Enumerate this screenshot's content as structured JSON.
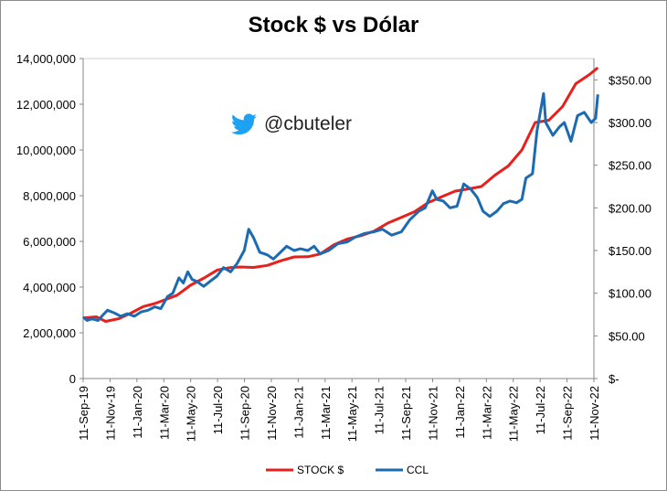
{
  "colors": {
    "stock": "#e8201c",
    "ccl": "#1c6bb2",
    "twitter": "#1da1f2"
  },
  "watermark": {
    "handle": "@cbuteler",
    "icon": "twitter-bird-icon"
  },
  "chart_data": {
    "type": "line",
    "title": "Stock $ vs Dólar",
    "x_ticks": [
      "11-Sep-19",
      "11-Nov-19",
      "11-Jan-20",
      "11-Mar-20",
      "11-May-20",
      "11-Jul-20",
      "11-Sep-20",
      "11-Nov-20",
      "11-Jan-21",
      "11-Mar-21",
      "11-May-21",
      "11-Jul-21",
      "11-Sep-21",
      "11-Nov-21",
      "11-Jan-22",
      "11-Mar-22",
      "11-May-22",
      "11-Jul-22",
      "11-Sep-22",
      "11-Nov-22"
    ],
    "y_left": {
      "ylim": [
        0,
        14000000
      ],
      "tick_values": [
        0,
        2000000,
        4000000,
        6000000,
        8000000,
        10000000,
        12000000,
        14000000
      ],
      "tick_labels": [
        "0",
        "2,000,000",
        "4,000,000",
        "6,000,000",
        "8,000,000",
        "10,000,000",
        "12,000,000",
        "14,000,000"
      ]
    },
    "y_right": {
      "ylim": [
        0,
        375
      ],
      "tick_values": [
        0,
        50,
        100,
        150,
        200,
        250,
        300,
        350
      ],
      "tick_labels": [
        "$-",
        "$50.00",
        "$100.00",
        "$150.00",
        "$200.00",
        "$250.00",
        "$300.00",
        "$350.00"
      ]
    },
    "series": [
      {
        "name": "STOCK $",
        "axis": "left",
        "color": "#e8201c",
        "points": [
          [
            "2019-09-11",
            2650000
          ],
          [
            "2019-10-11",
            2700000
          ],
          [
            "2019-11-01",
            2500000
          ],
          [
            "2019-12-01",
            2620000
          ],
          [
            "2020-01-01",
            2900000
          ],
          [
            "2020-01-25",
            3150000
          ],
          [
            "2020-02-20",
            3280000
          ],
          [
            "2020-03-11",
            3420000
          ],
          [
            "2020-04-11",
            3650000
          ],
          [
            "2020-05-11",
            4080000
          ],
          [
            "2020-06-11",
            4400000
          ],
          [
            "2020-07-11",
            4750000
          ],
          [
            "2020-08-11",
            4860000
          ],
          [
            "2020-09-01",
            4880000
          ],
          [
            "2020-10-01",
            4860000
          ],
          [
            "2020-11-01",
            4950000
          ],
          [
            "2020-12-01",
            5150000
          ],
          [
            "2021-01-01",
            5320000
          ],
          [
            "2021-02-01",
            5330000
          ],
          [
            "2021-03-01",
            5450000
          ],
          [
            "2021-04-01",
            5850000
          ],
          [
            "2021-05-01",
            6100000
          ],
          [
            "2021-06-01",
            6250000
          ],
          [
            "2021-07-01",
            6450000
          ],
          [
            "2021-08-01",
            6800000
          ],
          [
            "2021-09-01",
            7050000
          ],
          [
            "2021-10-01",
            7300000
          ],
          [
            "2021-11-01",
            7700000
          ],
          [
            "2021-12-01",
            7950000
          ],
          [
            "2022-01-01",
            8200000
          ],
          [
            "2022-02-01",
            8300000
          ],
          [
            "2022-03-01",
            8400000
          ],
          [
            "2022-04-01",
            8900000
          ],
          [
            "2022-05-01",
            9300000
          ],
          [
            "2022-06-01",
            10000000
          ],
          [
            "2022-07-01",
            11200000
          ],
          [
            "2022-08-01",
            11300000
          ],
          [
            "2022-09-01",
            11900000
          ],
          [
            "2022-10-01",
            12900000
          ],
          [
            "2022-11-01",
            13300000
          ],
          [
            "2022-11-20",
            13600000
          ]
        ]
      },
      {
        "name": "CCL",
        "axis": "right",
        "color": "#1c6bb2",
        "points": [
          [
            "2019-09-11",
            72
          ],
          [
            "2019-09-20",
            68
          ],
          [
            "2019-10-01",
            70
          ],
          [
            "2019-10-15",
            68
          ],
          [
            "2019-10-25",
            74
          ],
          [
            "2019-11-05",
            80
          ],
          [
            "2019-11-20",
            77
          ],
          [
            "2019-12-05",
            73
          ],
          [
            "2019-12-20",
            76
          ],
          [
            "2020-01-05",
            73
          ],
          [
            "2020-01-20",
            78
          ],
          [
            "2020-02-05",
            80
          ],
          [
            "2020-02-20",
            84
          ],
          [
            "2020-03-05",
            82
          ],
          [
            "2020-03-20",
            96
          ],
          [
            "2020-04-01",
            100
          ],
          [
            "2020-04-15",
            118
          ],
          [
            "2020-04-25",
            112
          ],
          [
            "2020-05-05",
            125
          ],
          [
            "2020-05-15",
            116
          ],
          [
            "2020-05-25",
            114
          ],
          [
            "2020-06-10",
            108
          ],
          [
            "2020-06-25",
            114
          ],
          [
            "2020-07-10",
            120
          ],
          [
            "2020-07-25",
            130
          ],
          [
            "2020-08-10",
            125
          ],
          [
            "2020-08-25",
            135
          ],
          [
            "2020-09-10",
            150
          ],
          [
            "2020-09-20",
            175
          ],
          [
            "2020-10-01",
            165
          ],
          [
            "2020-10-15",
            148
          ],
          [
            "2020-11-01",
            145
          ],
          [
            "2020-11-15",
            140
          ],
          [
            "2020-12-01",
            148
          ],
          [
            "2020-12-15",
            155
          ],
          [
            "2021-01-01",
            150
          ],
          [
            "2021-01-15",
            152
          ],
          [
            "2021-02-01",
            150
          ],
          [
            "2021-02-15",
            155
          ],
          [
            "2021-03-01",
            146
          ],
          [
            "2021-03-20",
            150
          ],
          [
            "2021-04-10",
            158
          ],
          [
            "2021-05-01",
            160
          ],
          [
            "2021-05-20",
            166
          ],
          [
            "2021-06-10",
            170
          ],
          [
            "2021-07-01",
            172
          ],
          [
            "2021-07-20",
            175
          ],
          [
            "2021-08-10",
            168
          ],
          [
            "2021-09-01",
            172
          ],
          [
            "2021-09-20",
            186
          ],
          [
            "2021-10-10",
            196
          ],
          [
            "2021-10-25",
            200
          ],
          [
            "2021-11-10",
            220
          ],
          [
            "2021-11-20",
            210
          ],
          [
            "2021-12-05",
            208
          ],
          [
            "2021-12-20",
            200
          ],
          [
            "2022-01-05",
            202
          ],
          [
            "2022-01-20",
            228
          ],
          [
            "2022-02-05",
            222
          ],
          [
            "2022-02-20",
            212
          ],
          [
            "2022-03-05",
            196
          ],
          [
            "2022-03-20",
            190
          ],
          [
            "2022-04-05",
            196
          ],
          [
            "2022-04-20",
            205
          ],
          [
            "2022-05-05",
            208
          ],
          [
            "2022-05-20",
            206
          ],
          [
            "2022-06-01",
            210
          ],
          [
            "2022-06-10",
            235
          ],
          [
            "2022-06-25",
            240
          ],
          [
            "2022-07-05",
            290
          ],
          [
            "2022-07-20",
            334
          ],
          [
            "2022-07-25",
            300
          ],
          [
            "2022-08-10",
            285
          ],
          [
            "2022-08-25",
            295
          ],
          [
            "2022-09-05",
            300
          ],
          [
            "2022-09-20",
            278
          ],
          [
            "2022-10-05",
            308
          ],
          [
            "2022-10-20",
            312
          ],
          [
            "2022-11-05",
            300
          ],
          [
            "2022-11-15",
            305
          ],
          [
            "2022-11-20",
            333
          ]
        ]
      }
    ],
    "grid": false,
    "legend_position": "bottom"
  }
}
